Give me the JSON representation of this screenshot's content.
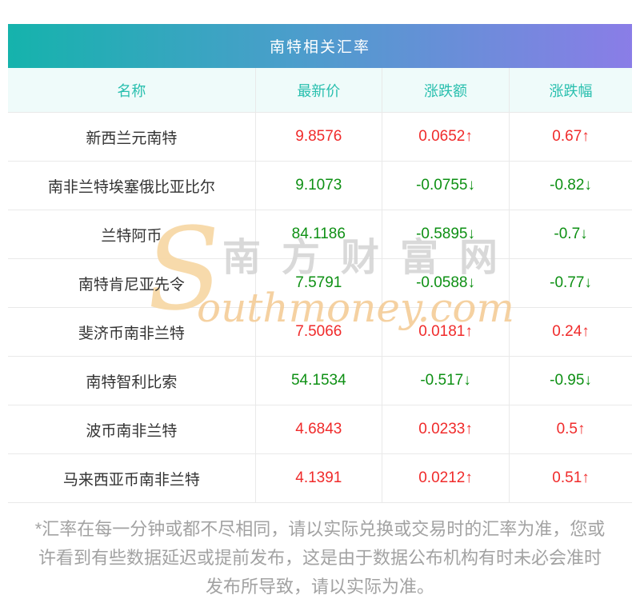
{
  "table": {
    "title": "南特相关汇率",
    "columns": {
      "name": "名称",
      "price": "最新价",
      "change": "涨跌额",
      "pct": "涨跌幅"
    },
    "rows": [
      {
        "name": "新西兰元南特",
        "price": "9.8576",
        "change": "0.0652↑",
        "pct": "0.67↑",
        "direction": "up"
      },
      {
        "name": "南非兰特埃塞俄比亚比尔",
        "price": "9.1073",
        "change": "-0.0755↓",
        "pct": "-0.82↓",
        "direction": "down"
      },
      {
        "name": "兰特阿币",
        "price": "84.1186",
        "change": "-0.5895↓",
        "pct": "-0.7↓",
        "direction": "down"
      },
      {
        "name": "南特肯尼亚先令",
        "price": "7.5791",
        "change": "-0.0588↓",
        "pct": "-0.77↓",
        "direction": "down"
      },
      {
        "name": "斐济币南非兰特",
        "price": "7.5066",
        "change": "0.0181↑",
        "pct": "0.24↑",
        "direction": "up"
      },
      {
        "name": "南特智利比索",
        "price": "54.1534",
        "change": "-0.517↓",
        "pct": "-0.95↓",
        "direction": "down"
      },
      {
        "name": "波币南非兰特",
        "price": "4.6843",
        "change": "0.0233↑",
        "pct": "0.5↑",
        "direction": "up"
      },
      {
        "name": "马来西亚币南非兰特",
        "price": "4.1391",
        "change": "0.0212↑",
        "pct": "0.51↑",
        "direction": "up"
      }
    ]
  },
  "watermark": {
    "swoosh": "S",
    "cn": "南方财富网",
    "en": "outhmoney.com"
  },
  "footnote": {
    "lines": [
      "*汇率在每一分钟或都不尽相同，请以实际兑换或交易时的汇率为准，您或",
      "许看到有些数据延迟或提前发布，这是由于数据公布机构有时未必会准时",
      "发布所导致，请以实际为准。"
    ]
  },
  "colors": {
    "up": "#f02b2b",
    "down": "#0e9014",
    "title_gradient_left": "#15b3ac",
    "title_gradient_right": "#8a7de7",
    "column_header_text": "#28bfae",
    "column_header_bg": "#effbfa",
    "footnote_text": "#a2a2a2"
  },
  "chart_data": {
    "type": "table",
    "title": "南特相关汇率",
    "columns": [
      "名称",
      "最新价",
      "涨跌额",
      "涨跌幅"
    ],
    "rows": [
      [
        "新西兰元南特",
        9.8576,
        0.0652,
        0.67
      ],
      [
        "南非兰特埃塞俄比亚比尔",
        9.1073,
        -0.0755,
        -0.82
      ],
      [
        "兰特阿币",
        84.1186,
        -0.5895,
        -0.7
      ],
      [
        "南特肯尼亚先令",
        7.5791,
        -0.0588,
        -0.77
      ],
      [
        "斐济币南非兰特",
        7.5066,
        0.0181,
        0.24
      ],
      [
        "南特智利比索",
        54.1534,
        -0.517,
        -0.95
      ],
      [
        "波币南非兰特",
        4.6843,
        0.0233,
        0.5
      ],
      [
        "马来西亚币南非兰特",
        4.1391,
        0.0212,
        0.51
      ]
    ],
    "notes": "涨跌额/涨跌幅 cells include ↑/↓ arrows; positive values red, negative values green"
  }
}
